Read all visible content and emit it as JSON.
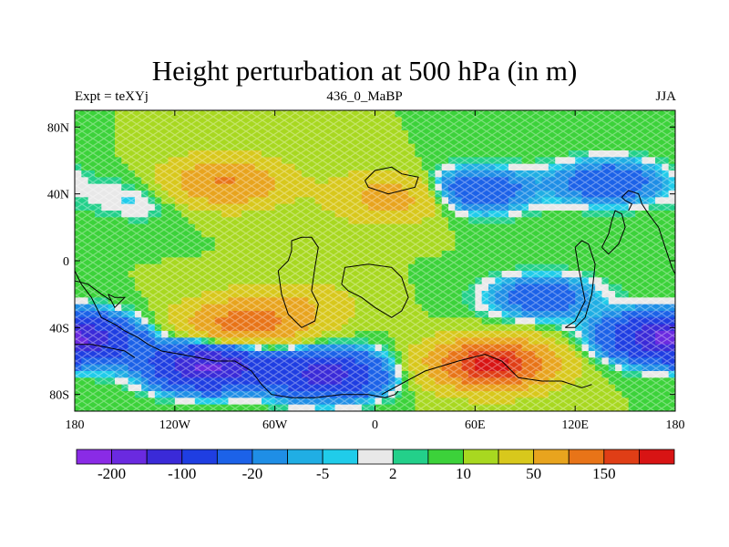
{
  "chart_data": {
    "type": "heatmap",
    "title": "Height perturbation at 500 hPa (in m)",
    "subtitle_left": "Expt = teXYj",
    "subtitle_center": "436_0_MaBP",
    "subtitle_right": "JJA",
    "x_ticks": [
      {
        "value": -180,
        "label": "180"
      },
      {
        "value": -120,
        "label": "120W"
      },
      {
        "value": -60,
        "label": "60W"
      },
      {
        "value": 0,
        "label": "0"
      },
      {
        "value": 60,
        "label": "60E"
      },
      {
        "value": 120,
        "label": "120E"
      },
      {
        "value": 180,
        "label": "180"
      }
    ],
    "y_ticks": [
      {
        "value": 80,
        "label": "80N"
      },
      {
        "value": 40,
        "label": "40N"
      },
      {
        "value": 0,
        "label": "0"
      },
      {
        "value": -40,
        "label": "40S"
      },
      {
        "value": -80,
        "label": "80S"
      }
    ],
    "xlim": [
      -180,
      180
    ],
    "ylim": [
      -90,
      90
    ],
    "background_value": 10,
    "anomalies": [
      {
        "lon": -90,
        "lat": 47,
        "value": 95
      },
      {
        "lon": -140,
        "lat": 37,
        "value": -15
      },
      {
        "lon": 10,
        "lat": 38,
        "value": 60
      },
      {
        "lon": 60,
        "lat": 42,
        "value": -55
      },
      {
        "lon": 140,
        "lat": 47,
        "value": -50
      },
      {
        "lon": -80,
        "lat": -38,
        "value": 110
      },
      {
        "lon": 70,
        "lat": -62,
        "value": 210
      },
      {
        "lon": -100,
        "lat": -63,
        "value": -170
      },
      {
        "lon": -30,
        "lat": -68,
        "value": -130
      },
      {
        "lon": 170,
        "lat": -45,
        "value": -100
      },
      {
        "lon": -175,
        "lat": -48,
        "value": -90
      },
      {
        "lon": 100,
        "lat": -22,
        "value": -45
      },
      {
        "lon": -50,
        "lat": -28,
        "value": 40
      }
    ],
    "colorbar": {
      "levels": [
        -200,
        -150,
        -100,
        -50,
        -20,
        -10,
        -5,
        -2,
        2,
        5,
        10,
        20,
        50,
        100,
        150,
        200
      ],
      "colors": [
        "#8a2be6",
        "#6a2ae0",
        "#3a2ad8",
        "#1f3ee2",
        "#1c62e8",
        "#1f8ee6",
        "#20aee4",
        "#20ccea",
        "#e8e8e8",
        "#23d08a",
        "#3cd23a",
        "#a8d820",
        "#d8c81c",
        "#e8a41e",
        "#e87418",
        "#e03e16",
        "#d81414"
      ],
      "labels": [
        {
          "value": -200,
          "label": "-200"
        },
        {
          "value": -100,
          "label": "-100"
        },
        {
          "value": -20,
          "label": "-20"
        },
        {
          "value": -5,
          "label": "-5"
        },
        {
          "value": 2,
          "label": "2"
        },
        {
          "value": 10,
          "label": "10"
        },
        {
          "value": 50,
          "label": "50"
        },
        {
          "value": 150,
          "label": "150"
        }
      ]
    },
    "coastlines": [
      [
        [
          -180,
          -6
        ],
        [
          -176,
          -14
        ],
        [
          -170,
          -22
        ],
        [
          -164,
          -34
        ],
        [
          -156,
          -38
        ],
        [
          -150,
          -42
        ],
        [
          -142,
          -46
        ],
        [
          -136,
          -50
        ],
        [
          -128,
          -54
        ],
        [
          -116,
          -56
        ],
        [
          -106,
          -58
        ],
        [
          -96,
          -60
        ],
        [
          -84,
          -60
        ],
        [
          -74,
          -66
        ],
        [
          -68,
          -74
        ],
        [
          -62,
          -80
        ],
        [
          -50,
          -82
        ],
        [
          -36,
          -82
        ],
        [
          -20,
          -80
        ],
        [
          -4,
          -80
        ],
        [
          6,
          -82
        ],
        [
          12,
          -80
        ],
        [
          14,
          -78
        ]
      ],
      [
        [
          -180,
          -50
        ],
        [
          -170,
          -50
        ],
        [
          -160,
          -52
        ],
        [
          -150,
          -54
        ],
        [
          -144,
          -58
        ]
      ],
      [
        [
          4,
          -80
        ],
        [
          30,
          -66
        ],
        [
          50,
          -60
        ],
        [
          66,
          -56
        ],
        [
          76,
          -60
        ],
        [
          86,
          -70
        ],
        [
          100,
          -72
        ],
        [
          112,
          -72
        ],
        [
          124,
          -76
        ],
        [
          130,
          -74
        ]
      ],
      [
        [
          -6,
          48
        ],
        [
          0,
          54
        ],
        [
          10,
          56
        ],
        [
          16,
          52
        ],
        [
          26,
          50
        ],
        [
          24,
          44
        ],
        [
          8,
          40
        ],
        [
          -4,
          44
        ],
        [
          -6,
          48
        ]
      ],
      [
        [
          -50,
          6
        ],
        [
          -50,
          12
        ],
        [
          -44,
          14
        ],
        [
          -38,
          14
        ],
        [
          -34,
          8
        ],
        [
          -36,
          -4
        ],
        [
          -38,
          -18
        ],
        [
          -34,
          -26
        ],
        [
          -36,
          -36
        ],
        [
          -44,
          -40
        ],
        [
          -52,
          -32
        ],
        [
          -56,
          -20
        ],
        [
          -58,
          -6
        ],
        [
          -52,
          0
        ],
        [
          -50,
          6
        ]
      ],
      [
        [
          -20,
          -14
        ],
        [
          -18,
          -4
        ],
        [
          -4,
          -2
        ],
        [
          10,
          -4
        ],
        [
          16,
          -10
        ],
        [
          20,
          -22
        ],
        [
          16,
          -30
        ],
        [
          10,
          -34
        ],
        [
          0,
          -28
        ],
        [
          -8,
          -22
        ],
        [
          -16,
          -18
        ],
        [
          -20,
          -14
        ]
      ],
      [
        [
          -160,
          -20
        ],
        [
          -156,
          -22
        ],
        [
          -150,
          -22
        ],
        [
          -156,
          -28
        ],
        [
          -160,
          -20
        ]
      ],
      [
        [
          114,
          -40
        ],
        [
          120,
          -36
        ],
        [
          126,
          -24
        ],
        [
          122,
          -4
        ],
        [
          120,
          8
        ],
        [
          124,
          12
        ],
        [
          128,
          10
        ],
        [
          132,
          -2
        ],
        [
          130,
          -20
        ],
        [
          126,
          -34
        ],
        [
          120,
          -40
        ],
        [
          114,
          -40
        ]
      ],
      [
        [
          136,
          8
        ],
        [
          140,
          16
        ],
        [
          142,
          24
        ],
        [
          144,
          30
        ],
        [
          148,
          28
        ],
        [
          150,
          20
        ],
        [
          146,
          10
        ],
        [
          140,
          4
        ],
        [
          136,
          8
        ]
      ],
      [
        [
          152,
          30
        ],
        [
          154,
          34
        ],
        [
          150,
          36
        ],
        [
          148,
          38
        ],
        [
          152,
          42
        ],
        [
          158,
          40
        ],
        [
          160,
          34
        ],
        [
          164,
          28
        ],
        [
          170,
          20
        ],
        [
          174,
          8
        ],
        [
          178,
          -4
        ],
        [
          180,
          -8
        ]
      ],
      [
        [
          -180,
          -12
        ],
        [
          -172,
          -14
        ],
        [
          -164,
          -20
        ],
        [
          -158,
          -24
        ]
      ]
    ]
  }
}
